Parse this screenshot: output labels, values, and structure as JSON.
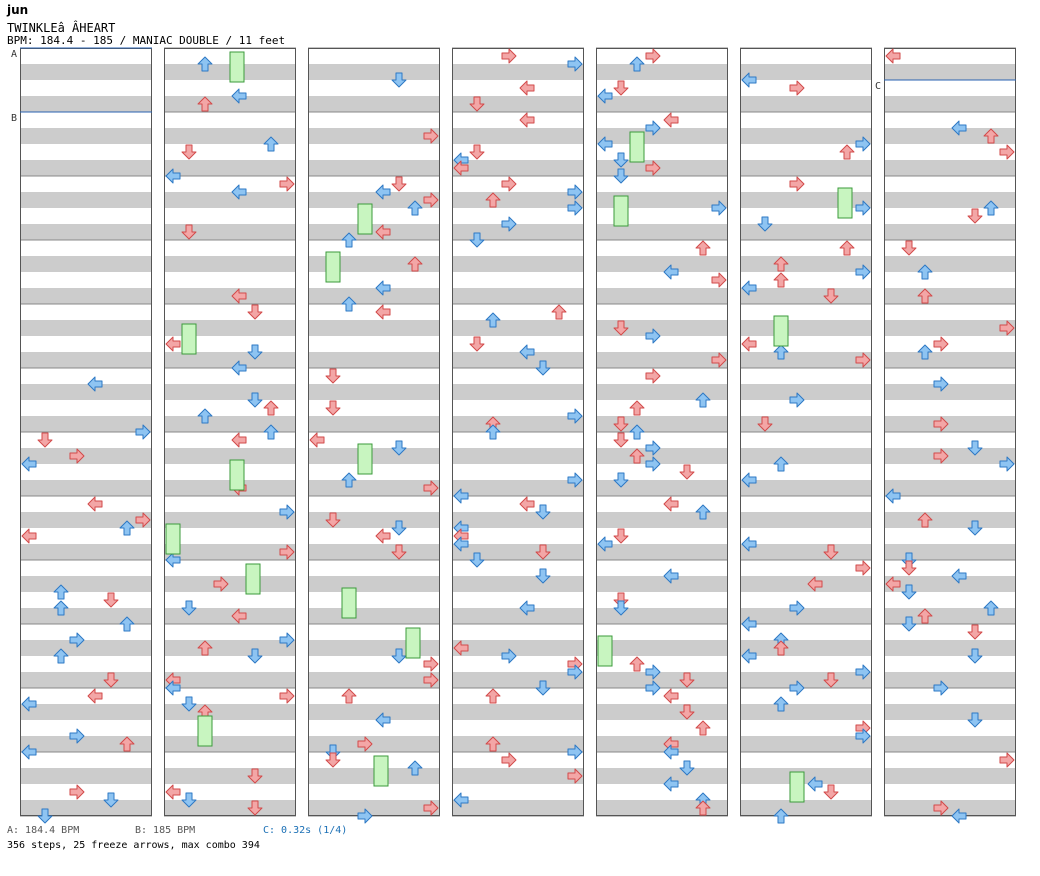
{
  "header": {
    "artist": "jun",
    "title": "TWINKLEâ ÂHEART",
    "bpm_line": "BPM: 184.4 - 185 / MANIAC DOUBLE / 11 feet"
  },
  "markers": [
    "A",
    "B",
    "C"
  ],
  "legend": {
    "a": "A: 184.4 BPM",
    "b": "B: 185 BPM",
    "c": "C: 0.32s (1/4)"
  },
  "summary": "356 steps, 25 freeze arrows, max combo 394",
  "colors": {
    "quarter_arrow": "#f3a6a6",
    "eighth_arrow": "#8ec4f2",
    "freeze": "#c8f5c0",
    "stripe": "#cccccc",
    "marker_line": "#2a62b0"
  },
  "lanes": [
    "left-1p",
    "down-1p",
    "up-1p",
    "right-1p",
    "left-2p",
    "down-2p",
    "up-2p",
    "right-2p"
  ]
}
